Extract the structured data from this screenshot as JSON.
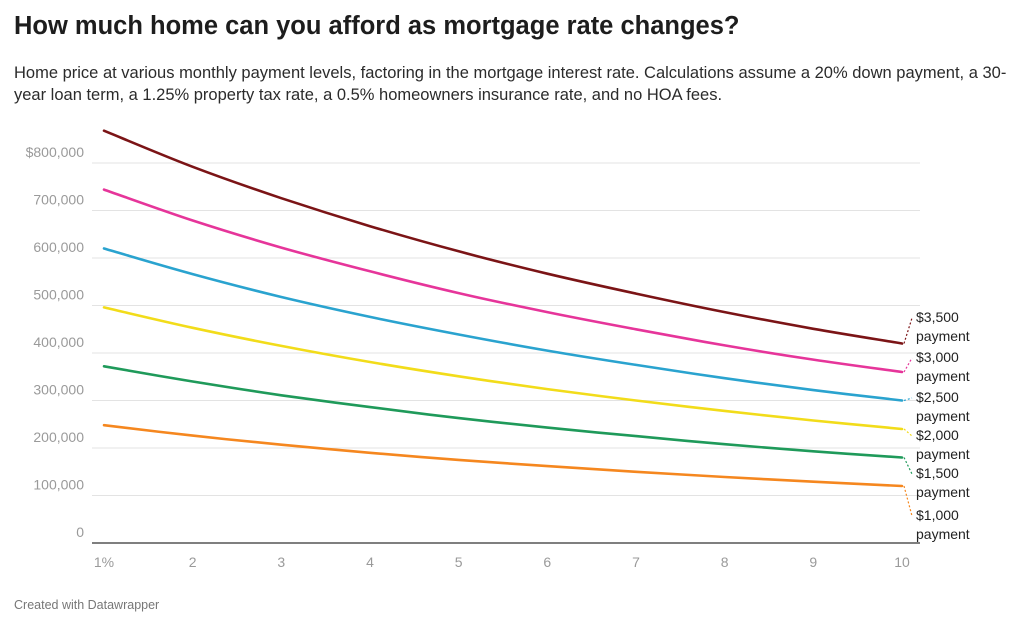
{
  "header": {
    "title": "How much home can you afford as mortgage rate changes?",
    "subtitle": "Home price at various monthly payment levels, factoring in the mortgage interest rate. Calculations assume a 20% down payment, a 30-year loan term, a 1.25% property tax rate, a 0.5% homeowners insurance rate, and no HOA fees."
  },
  "footer": {
    "credit": "Created with Datawrapper"
  },
  "chart_data": {
    "type": "line",
    "title": "How much home can you afford as mortgage rate changes?",
    "xlabel": "",
    "ylabel": "",
    "x": [
      1,
      2,
      3,
      4,
      5,
      6,
      7,
      8,
      9,
      10
    ],
    "x_tick_labels": [
      "1%",
      "2",
      "3",
      "4",
      "5",
      "6",
      "7",
      "8",
      "9",
      "10"
    ],
    "y_ticks": [
      0,
      100000,
      200000,
      300000,
      400000,
      500000,
      600000,
      700000,
      800000
    ],
    "y_tick_labels": [
      "0",
      "100,000",
      "200,000",
      "300,000",
      "400,000",
      "500,000",
      "600,000",
      "700,000",
      "$800,000"
    ],
    "ylim": [
      0,
      880000
    ],
    "xlim": [
      1,
      10
    ],
    "grid": "horizontal",
    "series": [
      {
        "name": "$3,500 payment",
        "label_line1": "$3,500",
        "label_line2": "payment",
        "color": "#7b1416",
        "values": [
          868000,
          792000,
          726000,
          667000,
          614000,
          567000,
          525000,
          486000,
          451000,
          420000
        ]
      },
      {
        "name": "$3,000 payment",
        "label_line1": "$3,000",
        "label_line2": "payment",
        "color": "#e6359a",
        "values": [
          744000,
          679000,
          622000,
          572000,
          526000,
          486000,
          450000,
          416000,
          386000,
          360000
        ]
      },
      {
        "name": "$2,500 payment",
        "label_line1": "$2,500",
        "label_line2": "payment",
        "color": "#2aa3cf",
        "values": [
          620000,
          566000,
          518000,
          476000,
          439000,
          405000,
          375000,
          347000,
          322000,
          300000
        ]
      },
      {
        "name": "$2,000 payment",
        "label_line1": "$2,000",
        "label_line2": "payment",
        "color": "#f2dc1a",
        "values": [
          496000,
          453000,
          415000,
          381000,
          351000,
          324000,
          300000,
          278000,
          258000,
          240000
        ]
      },
      {
        "name": "$1,500 payment",
        "label_line1": "$1,500",
        "label_line2": "payment",
        "color": "#1f9a5a",
        "values": [
          372000,
          340000,
          311000,
          286000,
          263000,
          243000,
          225000,
          208000,
          193000,
          180000
        ]
      },
      {
        "name": "$1,000 payment",
        "label_line1": "$1,000",
        "label_line2": "payment",
        "color": "#f5871f",
        "values": [
          248000,
          226000,
          207000,
          190000,
          175000,
          162000,
          150000,
          139000,
          129000,
          120000
        ]
      }
    ]
  }
}
